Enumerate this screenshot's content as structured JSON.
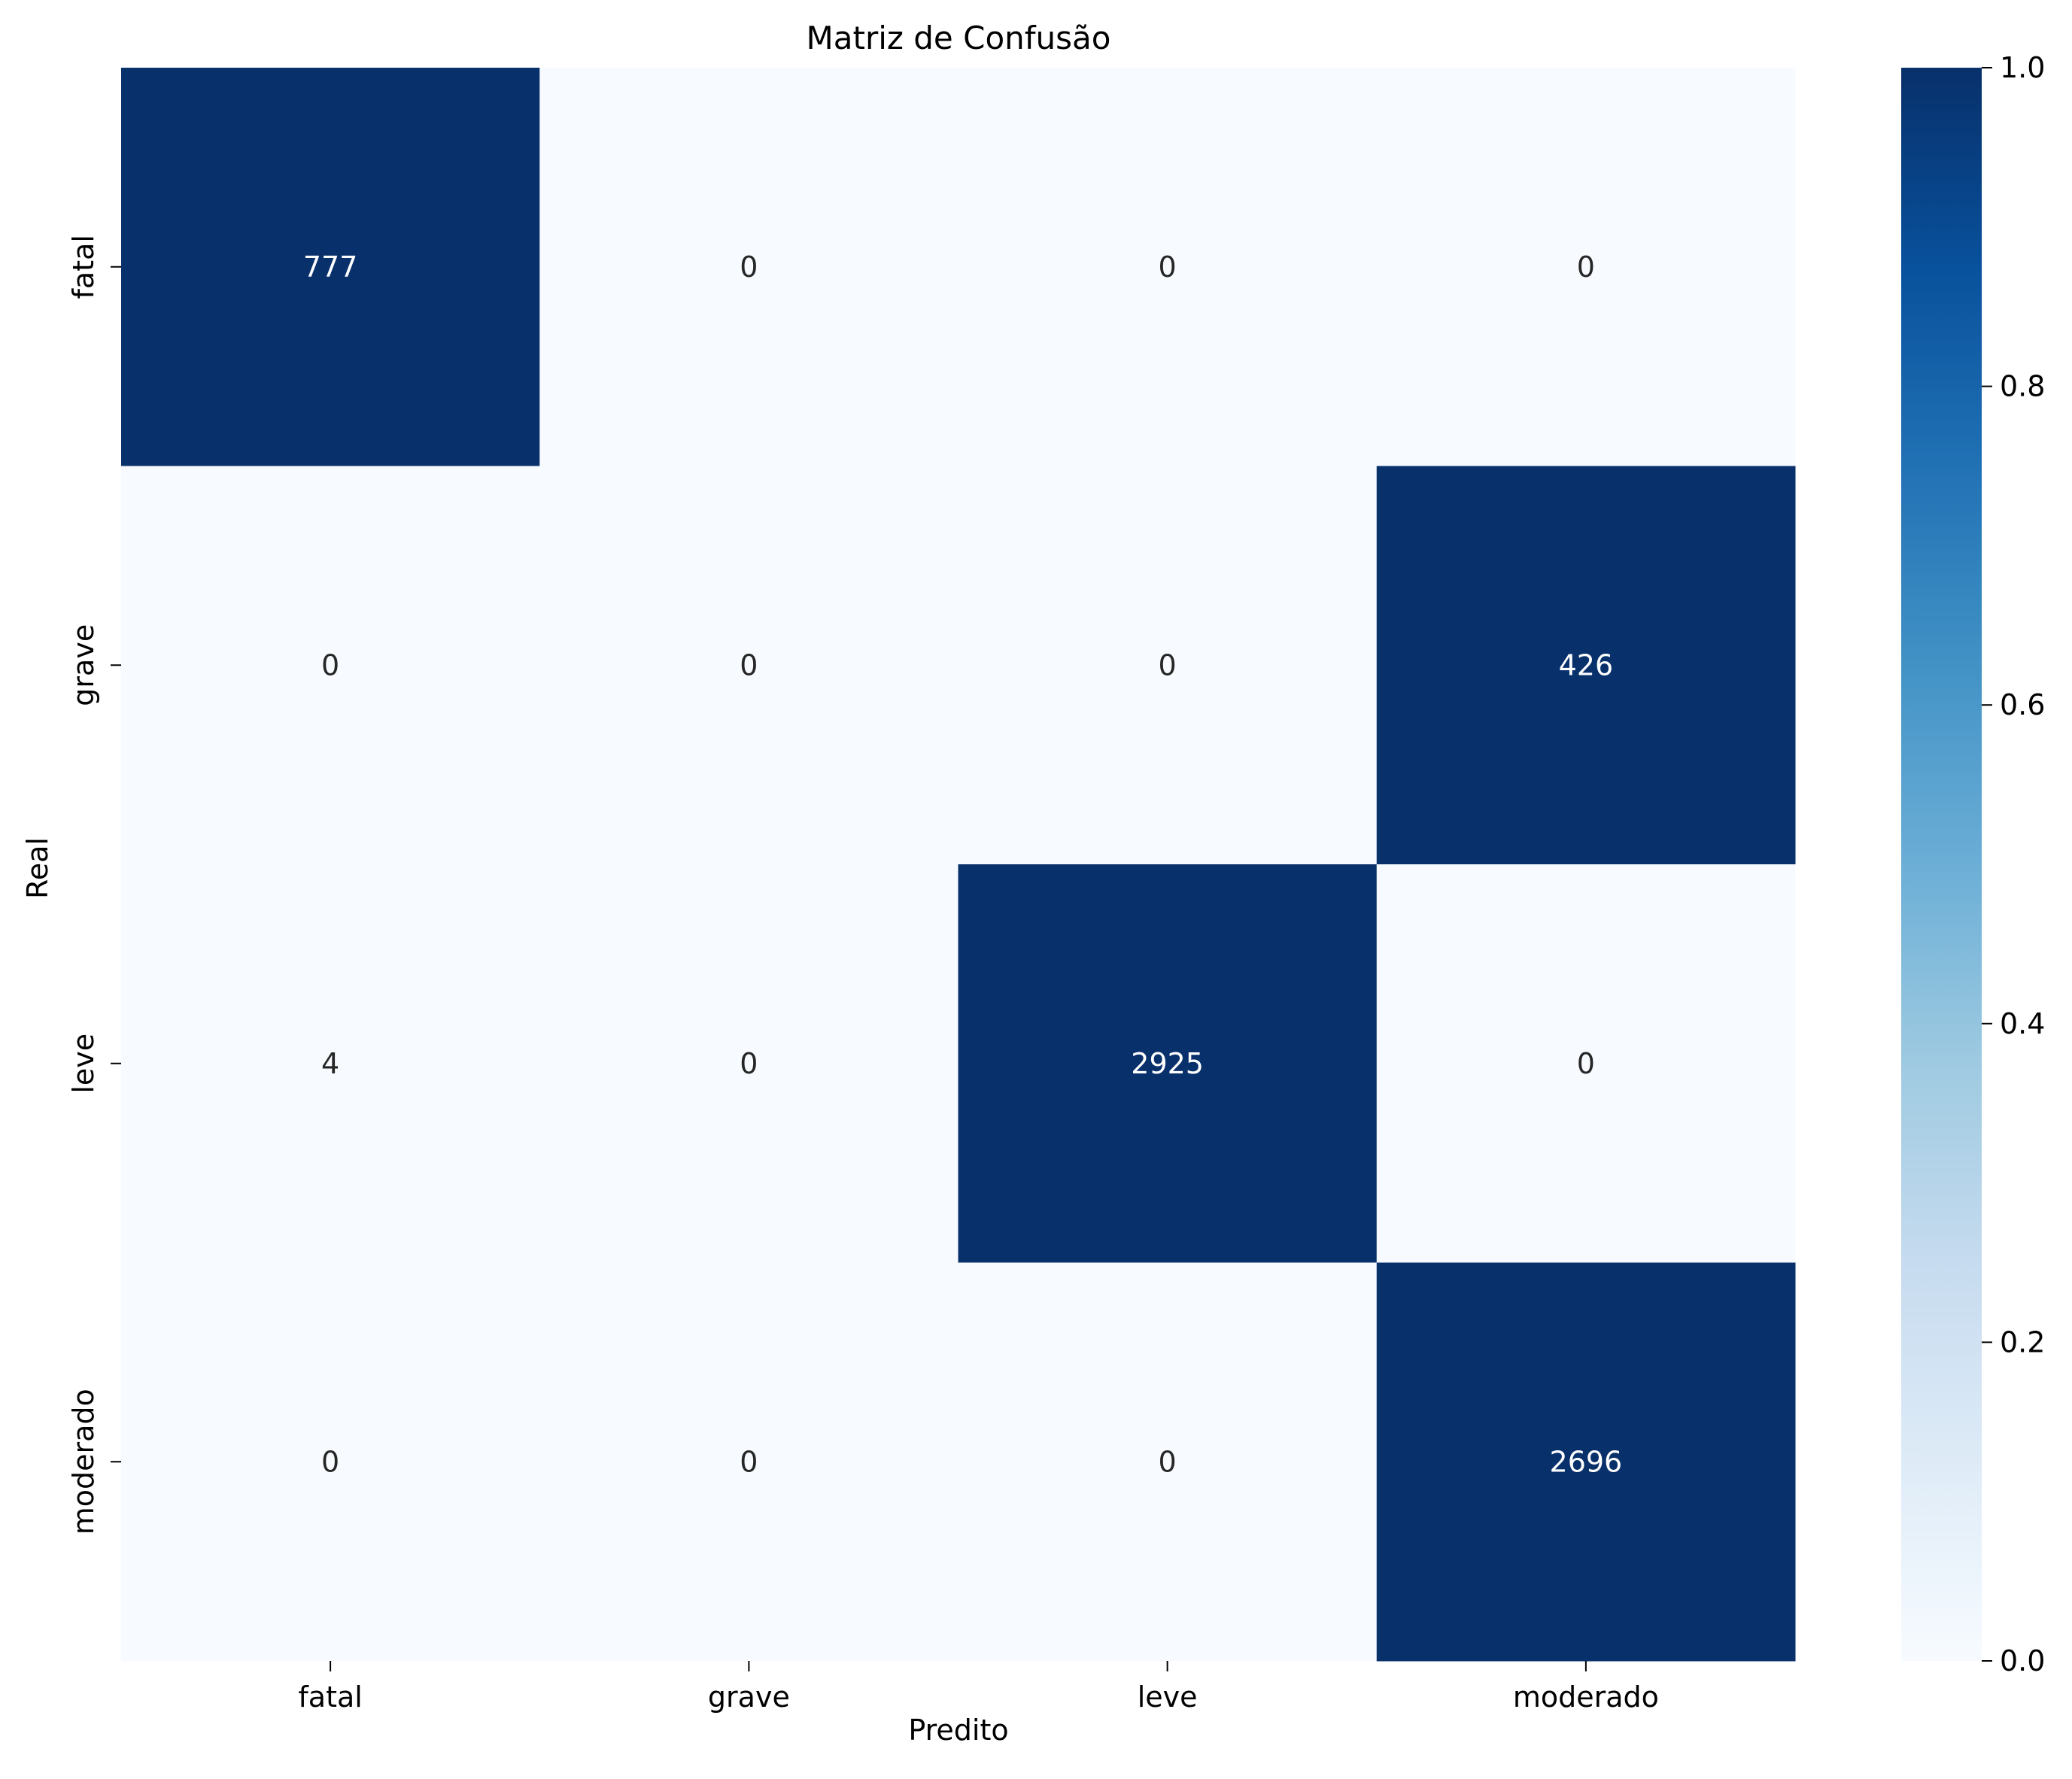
{
  "chart_data": {
    "type": "heatmap",
    "title": "Matriz de Confusão",
    "xlabel": "Predito",
    "ylabel": "Real",
    "x_categories": [
      "fatal",
      "grave",
      "leve",
      "moderado"
    ],
    "y_categories": [
      "fatal",
      "grave",
      "leve",
      "moderado"
    ],
    "values": [
      [
        777,
        0,
        0,
        0
      ],
      [
        0,
        0,
        0,
        426
      ],
      [
        4,
        0,
        2925,
        0
      ],
      [
        0,
        0,
        0,
        2696
      ]
    ],
    "color_values": [
      [
        1,
        0,
        0,
        0
      ],
      [
        0,
        0,
        0,
        1
      ],
      [
        0.0014,
        0,
        1,
        0
      ],
      [
        0,
        0,
        0,
        1
      ]
    ],
    "colorbar": {
      "range": [
        0.0,
        1.0
      ],
      "ticks": [
        "0.0",
        "0.2",
        "0.4",
        "0.6",
        "0.8",
        "1.0"
      ],
      "colormap": "Blues",
      "low_color": "#f7fbff",
      "high_color": "#08306b"
    },
    "dark_text_color": "#262626",
    "light_text_color": "#ffffff"
  }
}
